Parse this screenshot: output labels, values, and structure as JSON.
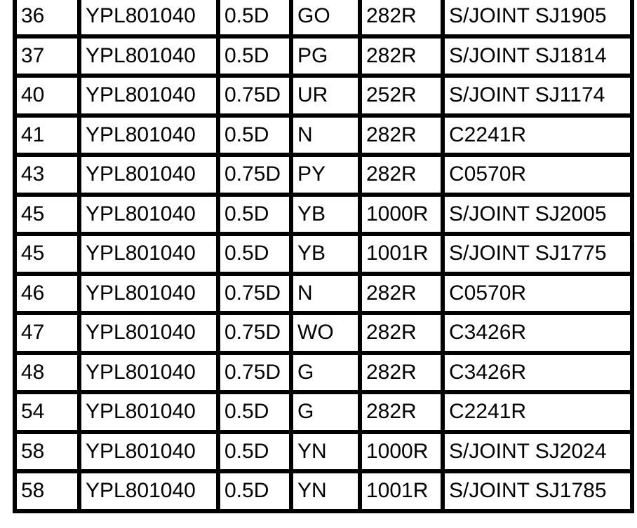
{
  "table": {
    "rows": [
      [
        "36",
        "YPL801040",
        "0.5D",
        "GO",
        "282R",
        "S/JOINT SJ1905"
      ],
      [
        "37",
        "YPL801040",
        "0.5D",
        "PG",
        "282R",
        "S/JOINT SJ1814"
      ],
      [
        "40",
        "YPL801040",
        "0.75D",
        "UR",
        "252R",
        "S/JOINT SJ1174"
      ],
      [
        "41",
        "YPL801040",
        "0.5D",
        "N",
        "282R",
        "C2241R"
      ],
      [
        "43",
        "YPL801040",
        "0.75D",
        "PY",
        "282R",
        "C0570R"
      ],
      [
        "45",
        "YPL801040",
        "0.5D",
        "YB",
        "1000R",
        "S/JOINT SJ2005"
      ],
      [
        "45",
        "YPL801040",
        "0.5D",
        "YB",
        "1001R",
        "S/JOINT SJ1775"
      ],
      [
        "46",
        "YPL801040",
        "0.75D",
        "N",
        "282R",
        "C0570R"
      ],
      [
        "47",
        "YPL801040",
        "0.75D",
        "WO",
        "282R",
        "C3426R"
      ],
      [
        "48",
        "YPL801040",
        "0.75D",
        "G",
        "282R",
        "C3426R"
      ],
      [
        "54",
        "YPL801040",
        "0.5D",
        "G",
        "282R",
        "C2241R"
      ],
      [
        "58",
        "YPL801040",
        "0.5D",
        "YN",
        "1000R",
        "S/JOINT SJ2024"
      ],
      [
        "58",
        "YPL801040",
        "0.5D",
        "YN",
        "1001R",
        "S/JOINT SJ1785"
      ]
    ]
  }
}
